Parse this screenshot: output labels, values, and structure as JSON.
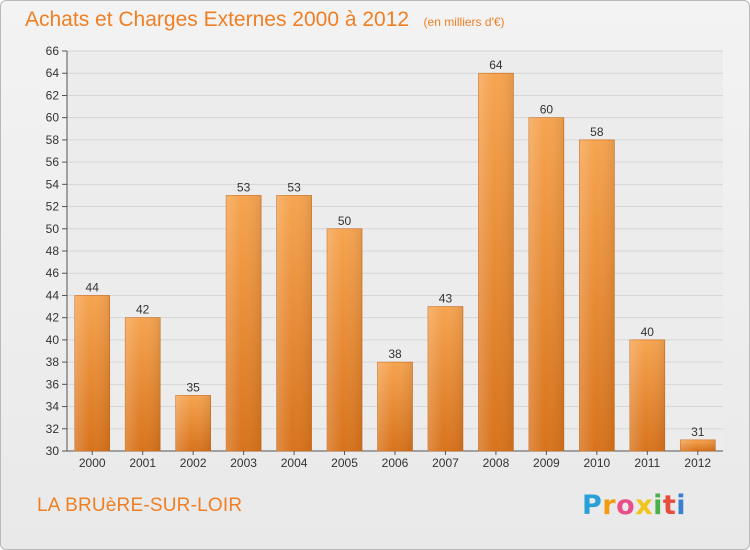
{
  "chart_data": {
    "type": "bar",
    "title": "Achats et Charges Externes 2000 à 2012",
    "unit_note": "(en milliers d'€)",
    "categories": [
      "2000",
      "2001",
      "2002",
      "2003",
      "2004",
      "2005",
      "2006",
      "2007",
      "2008",
      "2009",
      "2010",
      "2011",
      "2012"
    ],
    "values": [
      44,
      42,
      35,
      53,
      53,
      50,
      38,
      43,
      64,
      60,
      58,
      40,
      31
    ],
    "ylim": [
      30,
      66
    ],
    "ytick_step": 2,
    "xlabel": "",
    "ylabel": "",
    "grid": true,
    "bar_color": "#f28a2a"
  },
  "footer": {
    "place": "LA BRUèRE-SUR-LOIR",
    "logo": "Proxiti"
  }
}
